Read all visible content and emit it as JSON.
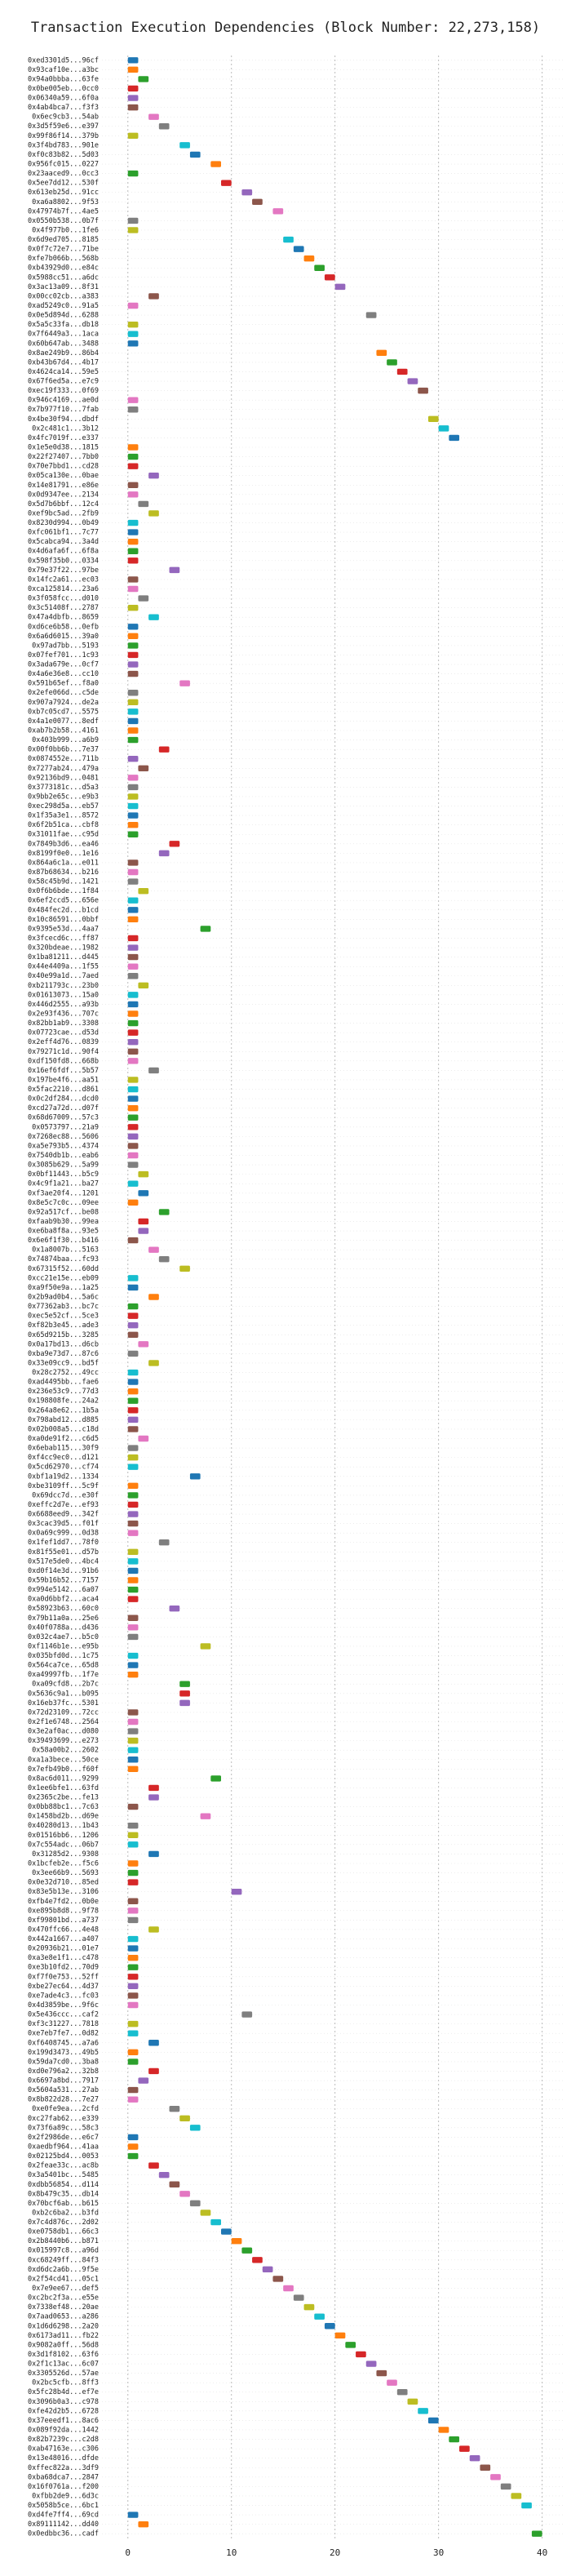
{
  "chart_data": {
    "type": "gantt",
    "title": "Transaction Execution Dependencies (Block Number: 22,273,158)",
    "xlim": [
      -2.5,
      42
    ],
    "xticks": [
      0,
      10,
      20,
      30,
      40
    ],
    "grid": true,
    "palette": [
      "#1f77b4",
      "#ff7f0e",
      "#2ca02c",
      "#d62728",
      "#9467bd",
      "#8c564b",
      "#e377c2",
      "#7f7f7f",
      "#bcbd22",
      "#17becf"
    ],
    "categories": [
      "0xed3301d5...96cf",
      "0x93caf10e...a3bc",
      "0x94a0bbba...63fe",
      "0x0be005eb...0cc0",
      "0x06340a59...6f0a",
      "0x4ab4bca7...f3f3",
      "0x6ec9cb3...54ab",
      "0x3d5f59e6...e397",
      "0x99f86f14...379b",
      "0x3f4bd783...901e",
      "0xf0c83b82...5d03",
      "0x956fc015...0227",
      "0x23aaced9...0cc3",
      "0x5ee7dd12...530f",
      "0x613eb25d...91cc",
      "0xa6a8802...9f53",
      "0x47974b7f...4ae5",
      "0x0550b538...0b7f",
      "0x4f977b0...1fe6",
      "0x6d9ed705...8185",
      "0x0f7c72e7...71be",
      "0xfe7b066b...568b",
      "0xb43929d0...e84c",
      "0x5988cc51...a6dc",
      "0x3ac13a09...8f31",
      "0x00cc02cb...a383",
      "0xad5249c0...91a5",
      "0x0e5d894d...6288",
      "0x5a5c33fa...db18",
      "0x7f6449a3...1aca",
      "0x60b647ab...3488",
      "0x8ae249b9...86b4",
      "0xb43b67d4...4b17",
      "0x4624ca14...59e5",
      "0x67f6ed5a...e7c9",
      "0xec19f333...0f69",
      "0x946c4169...ae0d",
      "0x7b977f10...7fab",
      "0x4be30f94...dbdf",
      "0x2c481c1...3b12",
      "0x4fc7019f...e337",
      "0x1e5e0d38...1815",
      "0x22f27407...7bb0",
      "0x70e7bbd1...cd28",
      "0x05ca130e...0bae",
      "0x14e81791...e86e",
      "0x0d9347ee...2134",
      "0x5d7b6bbf...12c4",
      "0xef9bc5ad...2fb9",
      "0x8230d994...0b49",
      "0xfc061bf1...7c77",
      "0x5cabca94...3a4d",
      "0x4d6afa6f...6f8a",
      "0x598f35b0...0334",
      "0x79e37f22...97be",
      "0x14fc2a61...ec03",
      "0xca125814...23a6",
      "0x3f058fcc...d010",
      "0x3c51408f...2787",
      "0x47a4dbfb...8659",
      "0xd6ce6b58...0efb",
      "0x6a6d6015...39a0",
      "0x97ad7bb...5193",
      "0x07fef701...1c93",
      "0x3ada679e...0cf7",
      "0x4a6e36e8...cc10",
      "0x591b65ef...f8a0",
      "0x2efe066d...c5de",
      "0x907a7924...de2a",
      "0xb7c05cd7...5575",
      "0x4a1e0077...8edf",
      "0xab7b2b58...4161",
      "0x403b999...a6b9",
      "0x00f0bb6b...7e37",
      "0x0874552e...711b",
      "0x7277ab24...479a",
      "0x92136bd9...0481",
      "0x3773181c...d5a3",
      "0x9bb2e65c...e9b3",
      "0xec298d5a...eb57",
      "0x1f35a3e1...8572",
      "0x6f2b51ca...cbf8",
      "0x31011fae...c95d",
      "0x7849b3d6...ea46",
      "0x8199f0e0...1e16",
      "0x864a6c1a...e011",
      "0x87b68634...b216",
      "0x58c45b9d...1421",
      "0x0f6b6bde...1f84",
      "0x6ef2ccd5...656e",
      "0x484fec2d...b1cd",
      "0x10c86591...0bbf",
      "0x9395e53d...4aa7",
      "0x3fcecd6c...ff87",
      "0x320bdeae...1982",
      "0x1ba81211...d445",
      "0x44e4409a...1f55",
      "0x40e99a1d...7aed",
      "0xb211793c...23b0",
      "0x01613073...15a0",
      "0x446d2555...a93b",
      "0x2e93f436...707c",
      "0x82bb1ab9...3308",
      "0x07723cae...d53d",
      "0x2eff4d76...0839",
      "0x79271c1d...90f4",
      "0xdf150fd8...668b",
      "0x16ef6fdf...5b57",
      "0x197be4f6...aa51",
      "0x5fac2210...d861",
      "0x0c2df284...dcd0",
      "0xcd27a72d...d07f",
      "0x68d67009...57c3",
      "0x0573797...21a9",
      "0x7268ec88...5606",
      "0xa5e793b5...4374",
      "0x7540db1b...eab6",
      "0x3085b629...5a99",
      "0x0bf11443...b5c9",
      "0x4c9f1a21...ba27",
      "0xf3ae20f4...1201",
      "0x8e5c7c0c...09ee",
      "0x92a517cf...be08",
      "0xfaab9b30...99ea",
      "0xe6ba8f8a...93e5",
      "0x6e6f1f30...b416",
      "0x1a8007b...5163",
      "0x74874baa...fc93",
      "0x67315f52...60dd",
      "0xcc21e15e...eb09",
      "0xa9f50e9a...1a25",
      "0x2b9ad0b4...5a6c",
      "0x77362ab3...bc7c",
      "0xec5e52cf...5ce3",
      "0xf82b3e45...ade3",
      "0x65d9215b...3285",
      "0x0a17bd13...d6cb",
      "0xba9e73d7...87c6",
      "0x33e09cc9...bd5f",
      "0x28c2752...49cc",
      "0xad4495bb...fae6",
      "0x236e53c9...77d3",
      "0x198808fe...24a2",
      "0x264a8e62...1b5a",
      "0x798abd12...d885",
      "0x02b008a5...c18d",
      "0xa0de91f2...c6d5",
      "0x6ebab115...30f9",
      "0xf4cc9ec0...d121",
      "0x5cd62970...cf74",
      "0xbf1a19d2...1334",
      "0xbe3109ff...5c9f",
      "0x69dcc7d...e30f",
      "0xeffc2d7e...ef93",
      "0x6688eed9...342f",
      "0x3cac39d5...f01f",
      "0x0a69c999...0d38",
      "0x1fef1dd7...78f0",
      "0x81f55e01...d57b",
      "0x517e5de0...4bc4",
      "0xd0f14e3d...91b6",
      "0x59b16b52...7157",
      "0x994e5142...6a07",
      "0xa0d6bbf2...aca4",
      "0x58923b63...60c0",
      "0x79b11a0a...25e6",
      "0x40f0788a...d436",
      "0x032c4ae7...b5c0",
      "0xf1146b1e...e95b",
      "0x035bfd0d...1c75",
      "0x564ca7ce...65d8",
      "0xa49997fb...1f7e",
      "0xa09cfd8...2b7c",
      "0x5636c9a1...b095",
      "0x16eb37fc...5301",
      "0x72d23109...72cc",
      "0x2f1e6748...2564",
      "0x3e2af0ac...d080",
      "0x39493699...e273",
      "0x58a00b2...2602",
      "0xa1a3bece...50ce",
      "0x7efb49b0...f60f",
      "0x8ac6d011...9299",
      "0x1ee6bfe1...63fd",
      "0x2365c2be...fe13",
      "0x0bb88bc1...7c63",
      "0x1458bd2b...d69e",
      "0x40280d13...1b43",
      "0x01516bb6...1206",
      "0x7c554adc...06b7",
      "0x31285d2...9308",
      "0x1bcfeb2e...f5c6",
      "0x3ee66b9...5693",
      "0x0e32d710...85ed",
      "0x83e5b13e...3106",
      "0xfb4e7fd2...0b0e",
      "0xe895b8d8...9f78",
      "0xf99801bd...a737",
      "0x470ffc66...4e48",
      "0x442a1667...a407",
      "0x20936b21...01e7",
      "0xa3e8e1f1...c478",
      "0xe3b10fd2...70d9",
      "0xf7f0e753...52ff",
      "0xbe27ec64...4d37",
      "0xe7ade4c3...fc03",
      "0x4d3859be...9f6c",
      "0x5e436ccc...caf2",
      "0xf3c31227...7818",
      "0xe7eb7fe7...0d82",
      "0xf6408745...a7a6",
      "0x199d3473...49b5",
      "0x59da7cd0...3ba8",
      "0xd0e796a2...32b8",
      "0x6697a8bd...7917",
      "0x5604a531...27ab",
      "0x8b822d28...7e27",
      "0xe0fe9ea...2cfd",
      "0xc27fab62...e339",
      "0x73f6a89c...58c3",
      "0x2f2986de...e6c7",
      "0xaedbf964...41aa",
      "0x02125bd4...0053",
      "0x2feae33c...ac8b",
      "0x3a5401bc...5485",
      "0xdbb56854...d114",
      "0x8b479c35...db14",
      "0x70bcf6ab...b615",
      "0xb2c6ba2...b3fd",
      "0x7c4d876c...2d02",
      "0xe0758db1...66c3",
      "0x2b8440b6...b871",
      "0x015997c8...a96d",
      "0xc68249ff...84f3",
      "0xd6dc2a6b...9f5e",
      "0x2f54cd41...05c1",
      "0x7e9ee67...def5",
      "0xc2bc2f3a...e55e",
      "0x7338ef48...20ae",
      "0x7aad0653...a286",
      "0x1d6d6298...2a20",
      "0x6173ad11...fb22",
      "0x9082a0ff...56d8",
      "0x3d1f8102...63f6",
      "0x2f1c13ac...6c07",
      "0x3305526d...57ae",
      "0x2bc5cfb...8ff3",
      "0x5fc28b4d...ef7e",
      "0x3096b0a3...c978",
      "0xfe42d2b5...6728",
      "0x37eeedf1...8ac6",
      "0x089f92da...1442",
      "0x82b7239c...c2d8",
      "0xab47163e...c306",
      "0x13e48016...dfde",
      "0xffec822a...3df9",
      "0xba68dca7...2847",
      "0x16f0761a...f200",
      "0xfbb2de9...6d3c",
      "0x5058b5ce...6bc1",
      "0xd4fe7ff4...69cd",
      "0x89111142...dd40",
      "0x0edbbc36...cadf"
    ],
    "values": [
      0,
      0,
      1,
      0,
      0,
      0,
      2,
      3,
      0,
      5,
      6,
      8,
      0,
      9,
      11,
      12,
      14,
      0,
      0,
      15,
      16,
      17,
      18,
      19,
      20,
      2,
      0,
      23,
      0,
      0,
      0,
      24,
      25,
      26,
      27,
      28,
      0,
      0,
      29,
      30,
      31,
      0,
      0,
      0,
      2,
      0,
      0,
      1,
      2,
      0,
      0,
      0,
      0,
      0,
      4,
      0,
      0,
      1,
      0,
      2,
      0,
      0,
      0,
      0,
      0,
      0,
      5,
      0,
      0,
      0,
      0,
      0,
      0,
      3,
      0,
      1,
      0,
      0,
      0,
      0,
      0,
      0,
      0,
      4,
      3,
      0,
      0,
      0,
      1,
      0,
      0,
      0,
      7,
      0,
      0,
      0,
      0,
      0,
      1,
      0,
      0,
      0,
      0,
      0,
      0,
      0,
      0,
      2,
      0,
      0,
      0,
      0,
      0,
      0,
      0,
      0,
      0,
      0,
      1,
      0,
      1,
      0,
      3,
      1,
      1,
      0,
      2,
      3,
      5,
      0,
      0,
      2,
      0,
      0,
      0,
      0,
      1,
      0,
      2,
      0,
      0,
      0,
      0,
      0,
      0,
      0,
      1,
      0,
      0,
      0,
      6,
      0,
      0,
      0,
      0,
      0,
      0,
      3,
      0,
      0,
      0,
      0,
      0,
      0,
      4,
      0,
      0,
      0,
      7,
      0,
      0,
      0,
      5,
      5,
      5,
      0,
      0,
      0,
      0,
      0,
      0,
      0,
      8,
      2,
      2,
      0,
      7,
      0,
      0,
      0,
      2,
      0,
      0,
      0,
      10,
      0,
      0,
      0,
      2,
      0,
      0,
      0,
      0,
      0,
      0,
      0,
      0,
      11,
      0,
      0,
      2,
      0,
      0,
      2,
      1,
      0,
      0,
      4,
      5,
      6,
      0,
      0,
      0,
      2,
      3,
      4,
      5,
      6,
      7,
      8,
      9,
      10,
      11,
      12,
      13,
      14,
      15,
      16,
      17,
      18,
      19,
      20,
      21,
      22,
      23,
      24,
      25,
      26,
      27,
      28,
      29,
      30,
      31,
      32,
      33,
      34,
      35,
      36,
      37,
      38,
      0,
      1,
      39
    ]
  }
}
